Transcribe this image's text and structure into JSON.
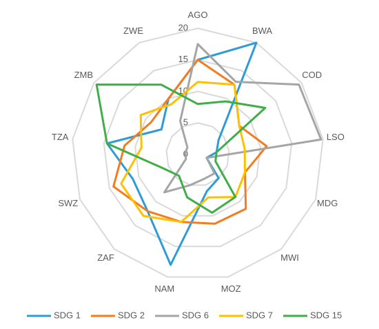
{
  "chart_data": {
    "type": "radar",
    "categories": [
      "AGO",
      "BWA",
      "COD",
      "LSO",
      "MDG",
      "MWI",
      "MOZ",
      "NAM",
      "ZAF",
      "SWZ",
      "TZA",
      "ZMB",
      "ZWE"
    ],
    "ylim": [
      0,
      20
    ],
    "yticks": [
      0,
      5,
      10,
      15,
      20
    ],
    "grid": true,
    "legend": "bottom",
    "series": [
      {
        "name": "SDG 1",
        "color": "#2e9bd6",
        "values": [
          15,
          20,
          4,
          3,
          1.5,
          5,
          6,
          18,
          12,
          11,
          14.5,
          7,
          10
        ]
      },
      {
        "name": "SDG 2",
        "color": "#f47b20",
        "values": [
          15,
          12.5,
          8,
          11,
          8,
          11.5,
          11.3,
          11,
          12,
          14.3,
          11.7,
          9,
          10
        ]
      },
      {
        "name": "SDG 6",
        "color": "#a5a5a5",
        "values": [
          17.5,
          13,
          19.5,
          19.7,
          1.5,
          4,
          4,
          5,
          8,
          2,
          2,
          2,
          6
        ]
      },
      {
        "name": "SDG 7",
        "color": "#ffc000",
        "values": [
          11.5,
          12.5,
          8,
          7.5,
          8,
          9,
          7,
          11,
          13,
          13,
          9,
          11,
          9
        ]
      },
      {
        "name": "SDG 15",
        "color": "#3fae49",
        "values": [
          8,
          9.5,
          13,
          3,
          3,
          9,
          9.5,
          7,
          4.5,
          6,
          14.5,
          19.5,
          12.5
        ]
      }
    ]
  }
}
